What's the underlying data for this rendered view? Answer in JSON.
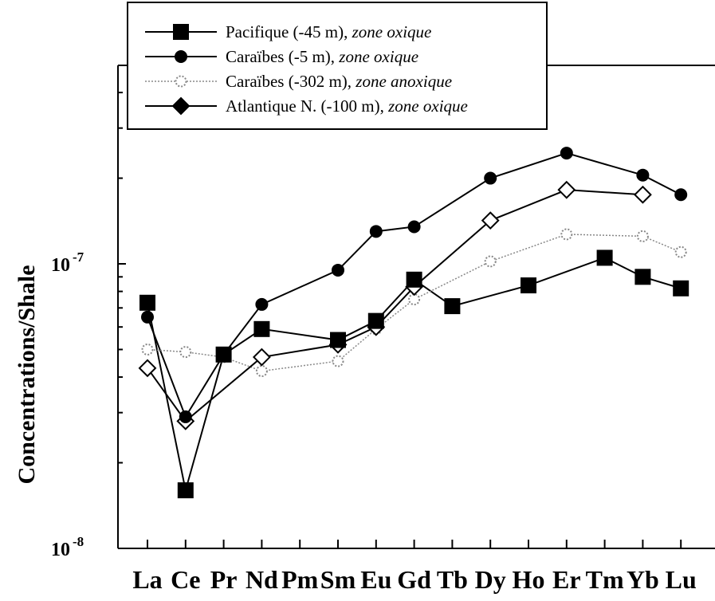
{
  "chart_data": {
    "type": "line",
    "title": "",
    "xlabel": "",
    "ylabel": "Concentrations/Shale",
    "yscale": "log",
    "ylim": [
      1e-08,
      4.8e-07
    ],
    "y_ticks": [
      {
        "value": 1e-07,
        "base": "10",
        "exp": "-7"
      },
      {
        "value": 1e-08,
        "base": "10",
        "exp": "-8"
      }
    ],
    "categories": [
      "La",
      "Ce",
      "Pr",
      "Nd",
      "Pm",
      "Sm",
      "Eu",
      "Gd",
      "Tb",
      "Dy",
      "Ho",
      "Er",
      "Tm",
      "Yb",
      "Lu"
    ],
    "legend_position": "top",
    "series": [
      {
        "name": "Pacifique (-45 m), ",
        "name_italic": "zone oxique",
        "marker": "square-filled",
        "color": "#000000",
        "line": "solid",
        "points": [
          [
            0,
            7.3e-08
          ],
          [
            1,
            1.6e-08
          ],
          [
            2,
            4.8e-08
          ],
          [
            3,
            5.9e-08
          ],
          [
            5,
            5.4e-08
          ],
          [
            6,
            6.3e-08
          ],
          [
            7,
            8.8e-08
          ],
          [
            8,
            7.1e-08
          ],
          [
            10,
            8.4e-08
          ],
          [
            12,
            1.05e-07
          ],
          [
            13,
            9e-08
          ],
          [
            14,
            8.2e-08
          ]
        ]
      },
      {
        "name": "Caraïbes (-5 m), ",
        "name_italic": "zone oxique",
        "marker": "circle-filled",
        "color": "#000000",
        "line": "solid",
        "points": [
          [
            0,
            6.5e-08
          ],
          [
            1,
            2.9e-08
          ],
          [
            2,
            4.8e-08
          ],
          [
            3,
            7.2e-08
          ],
          [
            5,
            9.5e-08
          ],
          [
            6,
            1.3e-07
          ],
          [
            7,
            1.35e-07
          ],
          [
            9,
            2e-07
          ],
          [
            11,
            2.45e-07
          ],
          [
            13,
            2.05e-07
          ],
          [
            14,
            1.75e-07
          ]
        ]
      },
      {
        "name": "Caraïbes (-302 m), ",
        "name_italic": "zone anoxique",
        "marker": "circle-open",
        "color": "#888888",
        "line": "dotted",
        "points": [
          [
            0,
            5e-08
          ],
          [
            1,
            4.9e-08
          ],
          [
            2,
            4.7e-08
          ],
          [
            3,
            4.2e-08
          ],
          [
            5,
            4.55e-08
          ],
          [
            6,
            5.9e-08
          ],
          [
            7,
            7.5e-08
          ],
          [
            9,
            1.02e-07
          ],
          [
            11,
            1.27e-07
          ],
          [
            13,
            1.25e-07
          ],
          [
            14,
            1.1e-07
          ]
        ]
      },
      {
        "name": "Atlantique N. (-100 m), ",
        "name_italic": "zone oxique",
        "marker": "diamond-open",
        "color": "#000000",
        "line": "solid",
        "legend_marker": "diamond-filled",
        "points": [
          [
            0,
            4.3e-08
          ],
          [
            1,
            2.8e-08
          ],
          [
            3,
            4.7e-08
          ],
          [
            5,
            5.2e-08
          ],
          [
            6,
            6e-08
          ],
          [
            7,
            8.3e-08
          ],
          [
            9,
            1.42e-07
          ],
          [
            11,
            1.82e-07
          ],
          [
            13,
            1.75e-07
          ]
        ]
      }
    ]
  }
}
